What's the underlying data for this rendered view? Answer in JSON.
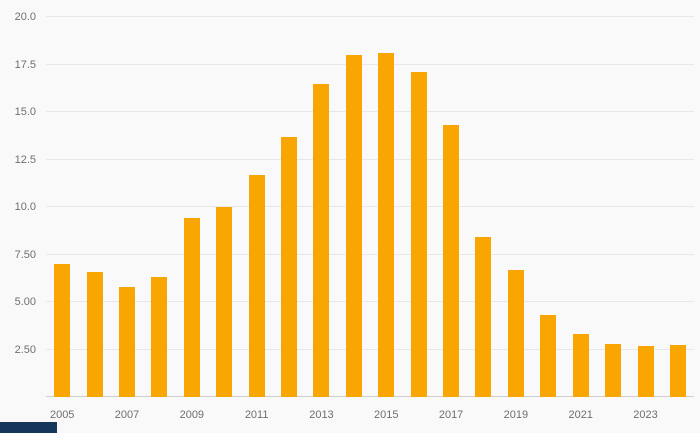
{
  "chart_data": {
    "type": "bar",
    "title": "",
    "xlabel": "",
    "ylabel": "",
    "categories": [
      2005,
      2006,
      2007,
      2008,
      2009,
      2010,
      2011,
      2012,
      2013,
      2014,
      2015,
      2016,
      2017,
      2018,
      2019,
      2020,
      2021,
      2022,
      2023,
      2024
    ],
    "values": [
      7.0,
      6.6,
      5.8,
      6.3,
      9.4,
      10.0,
      11.7,
      13.7,
      16.5,
      18.0,
      18.1,
      17.1,
      14.3,
      8.4,
      6.7,
      4.3,
      3.3,
      2.8,
      2.7,
      2.75
    ],
    "ylim": [
      0,
      20
    ],
    "grid": true,
    "legend": false,
    "yticks": [
      {
        "value": 20.0,
        "label": "20.0"
      },
      {
        "value": 17.5,
        "label": "17.5"
      },
      {
        "value": 15.0,
        "label": "15.0"
      },
      {
        "value": 12.5,
        "label": "12.5"
      },
      {
        "value": 10.0,
        "label": "10.0"
      },
      {
        "value": 7.5,
        "label": "7.50"
      },
      {
        "value": 5.0,
        "label": "5.00"
      },
      {
        "value": 2.5,
        "label": "2.50"
      }
    ],
    "x_tick_years": [
      2005,
      2007,
      2009,
      2011,
      2013,
      2015,
      2017,
      2019,
      2021,
      2023
    ]
  },
  "colors": {
    "bar": "#f9a602",
    "background": "#f9f9f9",
    "gridline": "#e7e7e7",
    "axis_line": "#cfcfcf",
    "tick_text": "#6f6f6f",
    "brand_bar": "#16365c"
  }
}
